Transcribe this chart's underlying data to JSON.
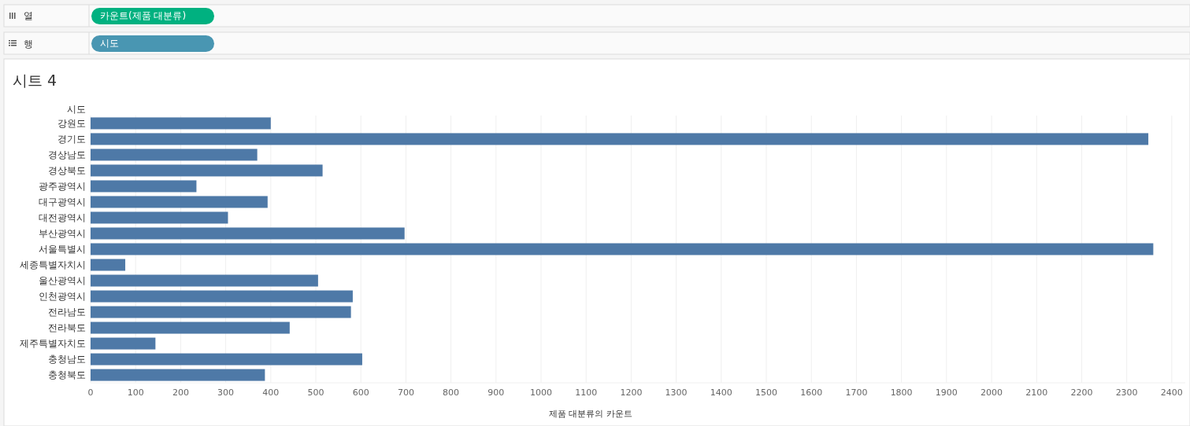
{
  "chart_data": {
    "type": "bar",
    "orientation": "horizontal",
    "title": "시트 4",
    "ylabel": "시도",
    "xlabel": "제품 대분류의 카운트",
    "annotations": [
      "열",
      "카운트(제품 대분류)",
      "행",
      "시도"
    ],
    "categories": [
      "강원도",
      "경기도",
      "경상남도",
      "경상북도",
      "광주광역시",
      "대구광역시",
      "대전광역시",
      "부산광역시",
      "서울특별시",
      "세종특별자치시",
      "울산광역시",
      "인천광역시",
      "전라남도",
      "전라북도",
      "제주특별자치도",
      "충청남도",
      "충청북도"
    ],
    "values": [
      400,
      2348,
      370,
      515,
      235,
      393,
      305,
      697,
      2359,
      77,
      505,
      582,
      578,
      442,
      144,
      603,
      387
    ],
    "color": "#4e79a7",
    "xlim": [
      0,
      2430
    ],
    "xticks": [
      0,
      100,
      200,
      300,
      400,
      500,
      600,
      700,
      800,
      900,
      1000,
      1100,
      1200,
      1300,
      1400,
      1500,
      1600,
      1700,
      1800,
      1900,
      2000,
      2100,
      2200,
      2300,
      2400
    ],
    "grid": "x"
  }
}
